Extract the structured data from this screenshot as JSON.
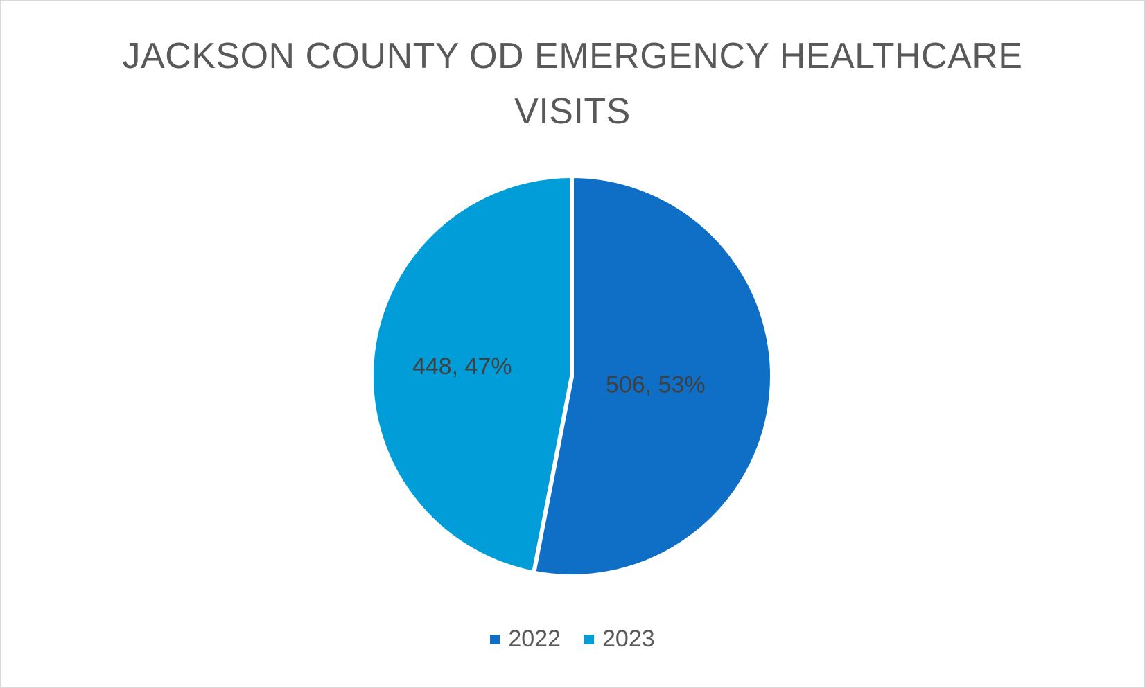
{
  "chart_data": {
    "type": "pie",
    "title_lines": [
      "JACKSON COUNTY OD EMERGENCY HEALTHCARE",
      "VISITS"
    ],
    "categories": [
      "2022",
      "2023"
    ],
    "values": [
      506,
      448
    ],
    "percentages": [
      53,
      47
    ],
    "data_labels": [
      "506, 53%",
      "448, 47%"
    ],
    "colors": [
      "#0f6fc6",
      "#009dd9"
    ],
    "legend_position": "bottom",
    "start": "top, clockwise"
  }
}
